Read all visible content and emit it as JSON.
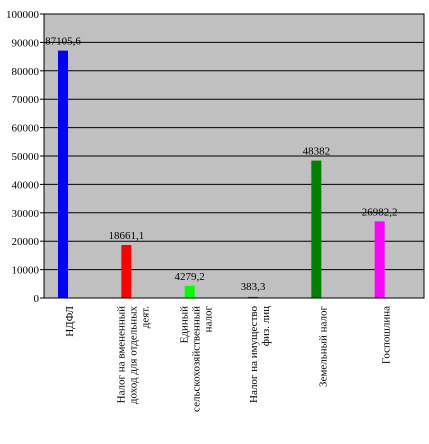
{
  "chart_data": {
    "type": "bar",
    "title": "",
    "xlabel": "",
    "ylabel": "",
    "ylim": [
      0,
      100000
    ],
    "yticks": [
      0,
      10000,
      20000,
      30000,
      40000,
      50000,
      60000,
      70000,
      80000,
      90000,
      100000
    ],
    "grid": true,
    "legend": "none",
    "plot_background": "#c0c0c0",
    "categories": [
      "НДФЛ",
      "Налог на вмененный доход для отдельных деят.",
      "Единый сельскохозяйственный налог",
      "Налог на имущество физ. лиц",
      "Земельный налог",
      "Госпошлина"
    ],
    "values": [
      87105.6,
      18661.1,
      4279.2,
      383.3,
      48382,
      26982.2
    ],
    "value_labels": [
      "87105,6",
      "18661,1",
      "4279,2",
      "383,3",
      "48382",
      "26982,2"
    ],
    "colors": [
      "#0000ff",
      "#ff0000",
      "#00ff00",
      "#333399",
      "#008000",
      "#ff00ff"
    ]
  }
}
